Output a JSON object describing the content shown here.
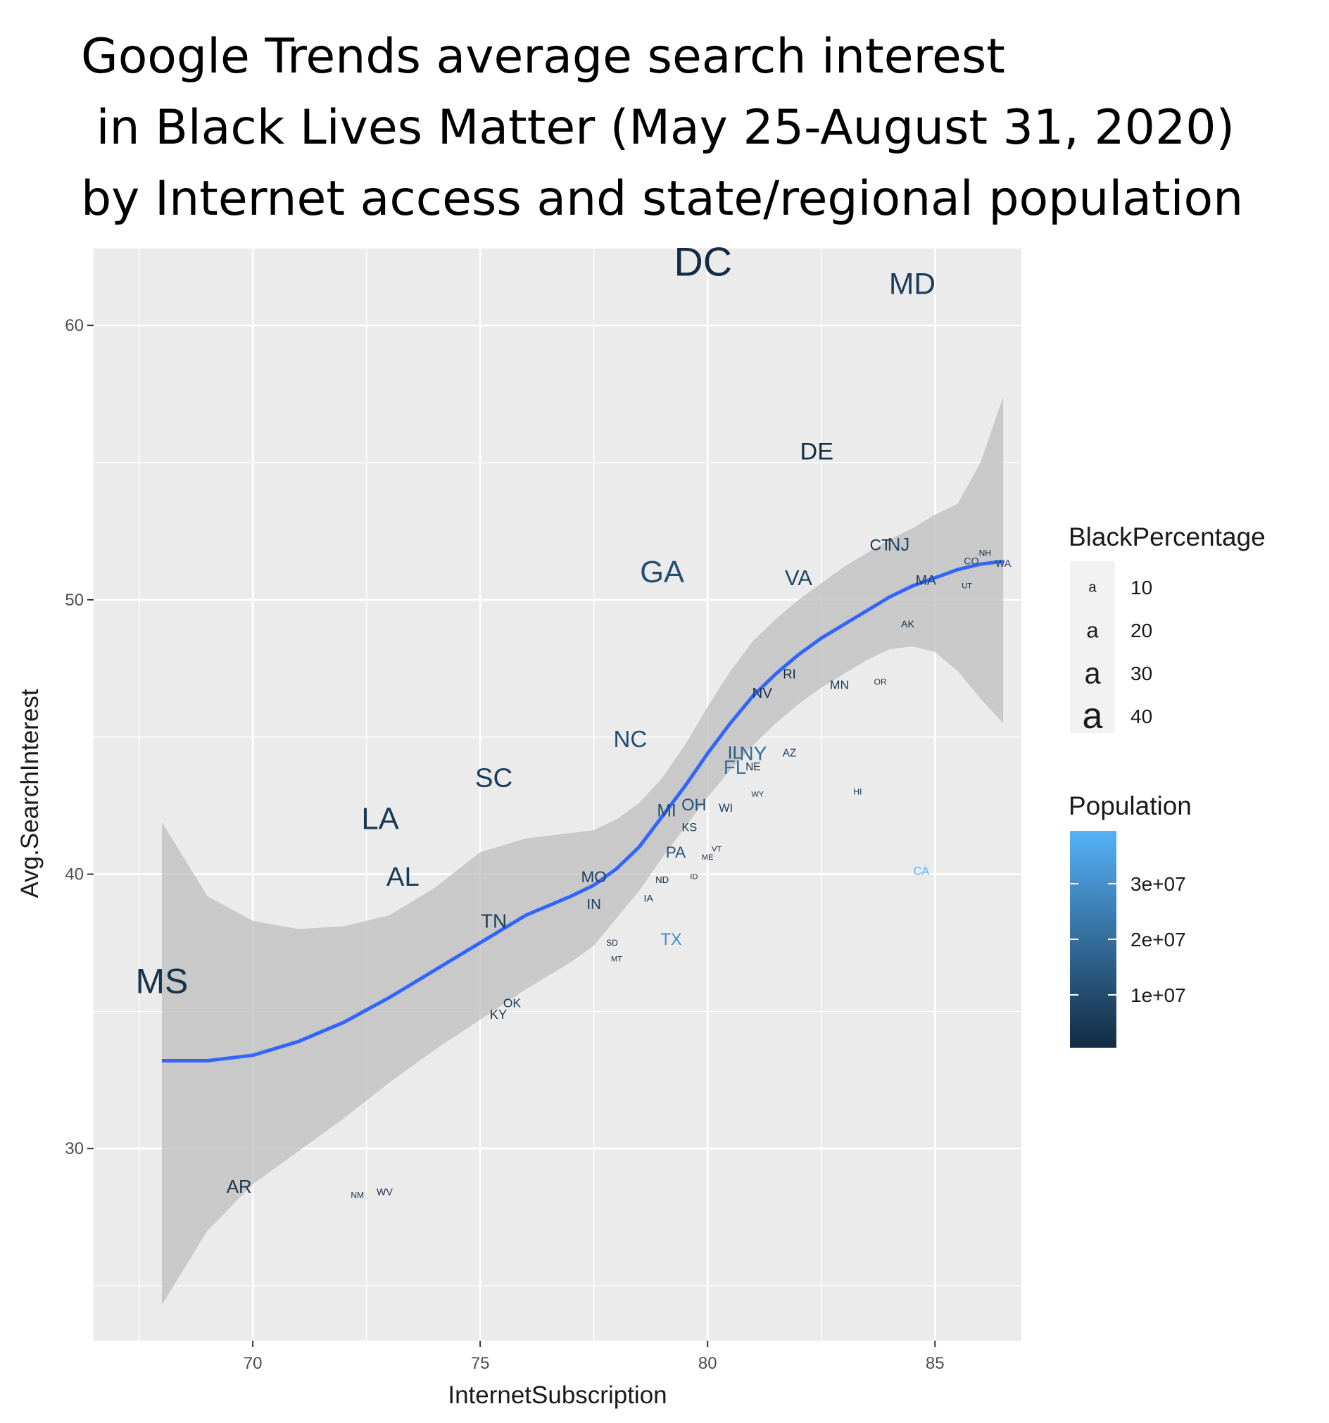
{
  "chart_data": {
    "type": "scatter",
    "title": "Google Trends average search interest\n in Black Lives Matter (May 25-August 31, 2020)\nby Internet access and state/regional population",
    "xlabel": "InternetSubscription",
    "ylabel": "Avg.SearchInterest",
    "xlim": [
      66.5,
      86.9
    ],
    "ylim": [
      23,
      62.8
    ],
    "xticks": [
      "70",
      "75",
      "80",
      "85"
    ],
    "yticks": [
      "30",
      "40",
      "50",
      "60"
    ],
    "grid": true,
    "points": [
      {
        "label": "DC",
        "x": 79.9,
        "y": 62.3,
        "black": 45,
        "pop": 700000
      },
      {
        "label": "MD",
        "x": 84.5,
        "y": 61.5,
        "black": 31,
        "pop": 6000000
      },
      {
        "label": "DE",
        "x": 82.4,
        "y": 55.4,
        "black": 23,
        "pop": 1000000
      },
      {
        "label": "GA",
        "x": 79.0,
        "y": 51.0,
        "black": 32,
        "pop": 10600000
      },
      {
        "label": "VA",
        "x": 82.0,
        "y": 50.8,
        "black": 20,
        "pop": 8500000
      },
      {
        "label": "CT",
        "x": 83.8,
        "y": 52.0,
        "black": 12,
        "pop": 3600000
      },
      {
        "label": "NJ",
        "x": 84.2,
        "y": 52.0,
        "black": 15,
        "pop": 8900000
      },
      {
        "label": "NH",
        "x": 86.1,
        "y": 51.7,
        "black": 2,
        "pop": 1400000
      },
      {
        "label": "CO",
        "x": 85.8,
        "y": 51.4,
        "black": 4,
        "pop": 5700000
      },
      {
        "label": "WA",
        "x": 86.5,
        "y": 51.3,
        "black": 4,
        "pop": 7600000
      },
      {
        "label": "MA",
        "x": 84.8,
        "y": 50.7,
        "black": 9,
        "pop": 6900000
      },
      {
        "label": "UT",
        "x": 85.7,
        "y": 50.5,
        "black": 1,
        "pop": 3200000
      },
      {
        "label": "AK",
        "x": 84.4,
        "y": 49.1,
        "black": 4,
        "pop": 700000
      },
      {
        "label": "RI",
        "x": 81.8,
        "y": 47.3,
        "black": 8,
        "pop": 1100000
      },
      {
        "label": "MN",
        "x": 82.9,
        "y": 46.9,
        "black": 7,
        "pop": 5600000
      },
      {
        "label": "OR",
        "x": 83.8,
        "y": 47.0,
        "black": 2,
        "pop": 4200000
      },
      {
        "label": "NV",
        "x": 81.2,
        "y": 46.6,
        "black": 10,
        "pop": 3100000
      },
      {
        "label": "NC",
        "x": 78.3,
        "y": 44.9,
        "black": 22,
        "pop": 10500000
      },
      {
        "label": "IL",
        "x": 80.6,
        "y": 44.4,
        "black": 14,
        "pop": 12700000
      },
      {
        "label": "NY",
        "x": 81.0,
        "y": 44.4,
        "black": 17,
        "pop": 19500000
      },
      {
        "label": "AZ",
        "x": 81.8,
        "y": 44.4,
        "black": 5,
        "pop": 7300000
      },
      {
        "label": "FL",
        "x": 80.6,
        "y": 43.9,
        "black": 17,
        "pop": 21500000
      },
      {
        "label": "NE",
        "x": 81.0,
        "y": 43.9,
        "black": 5,
        "pop": 1900000
      },
      {
        "label": "SC",
        "x": 75.3,
        "y": 43.5,
        "black": 27,
        "pop": 5100000
      },
      {
        "label": "WY",
        "x": 81.1,
        "y": 42.9,
        "black": 1,
        "pop": 600000
      },
      {
        "label": "HI",
        "x": 83.3,
        "y": 43.0,
        "black": 2,
        "pop": 1400000
      },
      {
        "label": "LA",
        "x": 72.8,
        "y": 42.0,
        "black": 32,
        "pop": 4600000
      },
      {
        "label": "MI",
        "x": 79.1,
        "y": 42.3,
        "black": 14,
        "pop": 10000000
      },
      {
        "label": "OH",
        "x": 79.7,
        "y": 42.5,
        "black": 13,
        "pop": 11700000
      },
      {
        "label": "WI",
        "x": 80.4,
        "y": 42.4,
        "black": 6,
        "pop": 5800000
      },
      {
        "label": "KS",
        "x": 79.6,
        "y": 41.7,
        "black": 6,
        "pop": 2900000
      },
      {
        "label": "PA",
        "x": 79.3,
        "y": 40.8,
        "black": 12,
        "pop": 12800000
      },
      {
        "label": "VT",
        "x": 80.2,
        "y": 40.9,
        "black": 1,
        "pop": 600000
      },
      {
        "label": "ME",
        "x": 80.0,
        "y": 40.6,
        "black": 1,
        "pop": 1300000
      },
      {
        "label": "AL",
        "x": 73.3,
        "y": 39.9,
        "black": 27,
        "pop": 4900000
      },
      {
        "label": "MO",
        "x": 77.5,
        "y": 39.9,
        "black": 12,
        "pop": 6100000
      },
      {
        "label": "ND",
        "x": 79.0,
        "y": 39.8,
        "black": 3,
        "pop": 800000
      },
      {
        "label": "ID",
        "x": 79.7,
        "y": 39.9,
        "black": 1,
        "pop": 1800000
      },
      {
        "label": "IN",
        "x": 77.5,
        "y": 38.9,
        "black": 10,
        "pop": 6700000
      },
      {
        "label": "IA",
        "x": 78.7,
        "y": 39.1,
        "black": 4,
        "pop": 3200000
      },
      {
        "label": "CA",
        "x": 84.7,
        "y": 40.1,
        "black": 6,
        "pop": 39500000
      },
      {
        "label": "TN",
        "x": 75.3,
        "y": 38.3,
        "black": 17,
        "pop": 6800000
      },
      {
        "label": "TX",
        "x": 79.2,
        "y": 37.6,
        "black": 13,
        "pop": 29000000
      },
      {
        "label": "SD",
        "x": 77.9,
        "y": 37.5,
        "black": 2,
        "pop": 900000
      },
      {
        "label": "MT",
        "x": 78.0,
        "y": 36.9,
        "black": 1,
        "pop": 1100000
      },
      {
        "label": "MS",
        "x": 68.0,
        "y": 36.1,
        "black": 38,
        "pop": 3000000
      },
      {
        "label": "OK",
        "x": 75.7,
        "y": 35.3,
        "black": 7,
        "pop": 4000000
      },
      {
        "label": "KY",
        "x": 75.4,
        "y": 34.9,
        "black": 8,
        "pop": 4500000
      },
      {
        "label": "AR",
        "x": 69.7,
        "y": 28.6,
        "black": 15,
        "pop": 3000000
      },
      {
        "label": "NM",
        "x": 72.3,
        "y": 28.3,
        "black": 2,
        "pop": 2100000
      },
      {
        "label": "WV",
        "x": 72.9,
        "y": 28.4,
        "black": 4,
        "pop": 1800000
      }
    ],
    "smooth": {
      "x": [
        68.0,
        69.0,
        70.0,
        71.0,
        72.0,
        73.0,
        74.0,
        75.0,
        76.0,
        77.0,
        77.5,
        78.0,
        78.5,
        79.0,
        79.5,
        80.0,
        80.5,
        81.0,
        81.5,
        82.0,
        82.5,
        83.0,
        83.5,
        84.0,
        84.5,
        85.0,
        85.5,
        86.0,
        86.5
      ],
      "y": [
        33.2,
        33.2,
        33.4,
        33.9,
        34.6,
        35.5,
        36.5,
        37.5,
        38.5,
        39.2,
        39.6,
        40.2,
        41.0,
        42.1,
        43.2,
        44.4,
        45.5,
        46.5,
        47.3,
        48.0,
        48.6,
        49.1,
        49.6,
        50.1,
        50.5,
        50.8,
        51.1,
        51.3,
        51.4
      ],
      "upper": [
        41.9,
        39.2,
        38.3,
        38.0,
        38.1,
        38.5,
        39.5,
        40.8,
        41.3,
        41.5,
        41.6,
        42.0,
        42.6,
        43.5,
        44.7,
        46.1,
        47.4,
        48.5,
        49.3,
        50.0,
        50.6,
        51.2,
        51.7,
        52.2,
        52.6,
        53.1,
        53.5,
        55.0,
        57.4
      ],
      "lower": [
        24.3,
        27.0,
        28.7,
        29.9,
        31.1,
        32.4,
        33.6,
        34.7,
        35.8,
        36.8,
        37.4,
        38.4,
        39.4,
        40.6,
        41.7,
        42.8,
        43.8,
        44.7,
        45.5,
        46.2,
        46.8,
        47.3,
        47.8,
        48.2,
        48.3,
        48.1,
        47.4,
        46.4,
        45.5
      ]
    },
    "legend": {
      "black_title": "BlackPercentage",
      "black_glyph": "a",
      "black_values": [
        "10",
        "20",
        "30",
        "40"
      ],
      "pop_title": "Population",
      "pop_ticks": [
        "3e+07",
        "2e+07",
        "1e+07"
      ],
      "pop_tick_values": [
        30000000,
        20000000,
        10000000
      ],
      "pop_range": [
        500000,
        39500000
      ],
      "placement": "right"
    },
    "colors": {
      "panel": "#ebebeb",
      "grid": "#ffffff",
      "smooth_line": "#3366ff",
      "ribbon": "#bebebe",
      "pop_low": "#132b43",
      "pop_high": "#56b1f7"
    }
  }
}
